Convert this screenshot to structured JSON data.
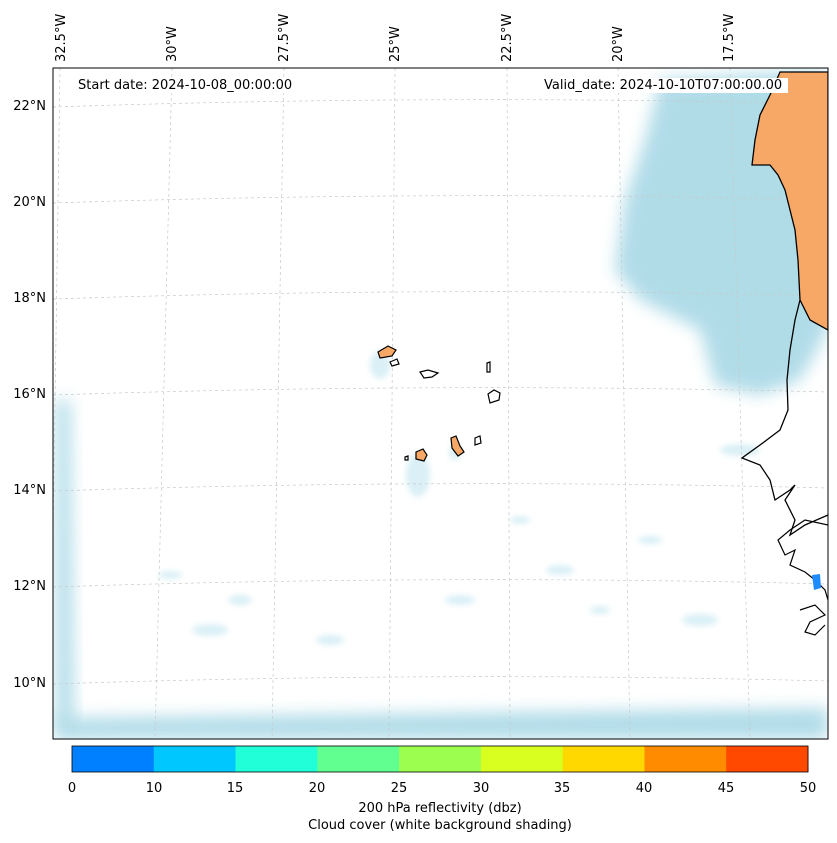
{
  "map": {
    "start_date": "Start date: 2024-10-08_00:00:00",
    "valid_date": "Valid_date: 2024-10-10T07:00:00.00",
    "lon_labels": [
      "32.5°W",
      "30°W",
      "27.5°W",
      "25°W",
      "22.5°W",
      "20°W",
      "17.5°W"
    ],
    "lat_labels": [
      "22°N",
      "20°N",
      "18°N",
      "16°N",
      "14°N",
      "12°N",
      "10°N"
    ],
    "colors": {
      "cloud": "#a8d8e6",
      "cloud_light": "#d6eef5",
      "land_fill": "#f7a866",
      "coast": "#000000",
      "gridline": "#c8c8c8",
      "reflectivity_spot": "#1e8cff"
    }
  },
  "colorbar": {
    "ticks": [
      "0",
      "10",
      "15",
      "20",
      "25",
      "30",
      "35",
      "40",
      "45",
      "50"
    ],
    "colors": [
      "#0080ff",
      "#00c8ff",
      "#20ffd8",
      "#60ff90",
      "#9cff50",
      "#d8ff20",
      "#ffd800",
      "#ff8c00",
      "#ff4800"
    ],
    "label_line1": "200 hPa reflectivity (dbz)",
    "label_line2": "Cloud cover (white background shading)"
  }
}
